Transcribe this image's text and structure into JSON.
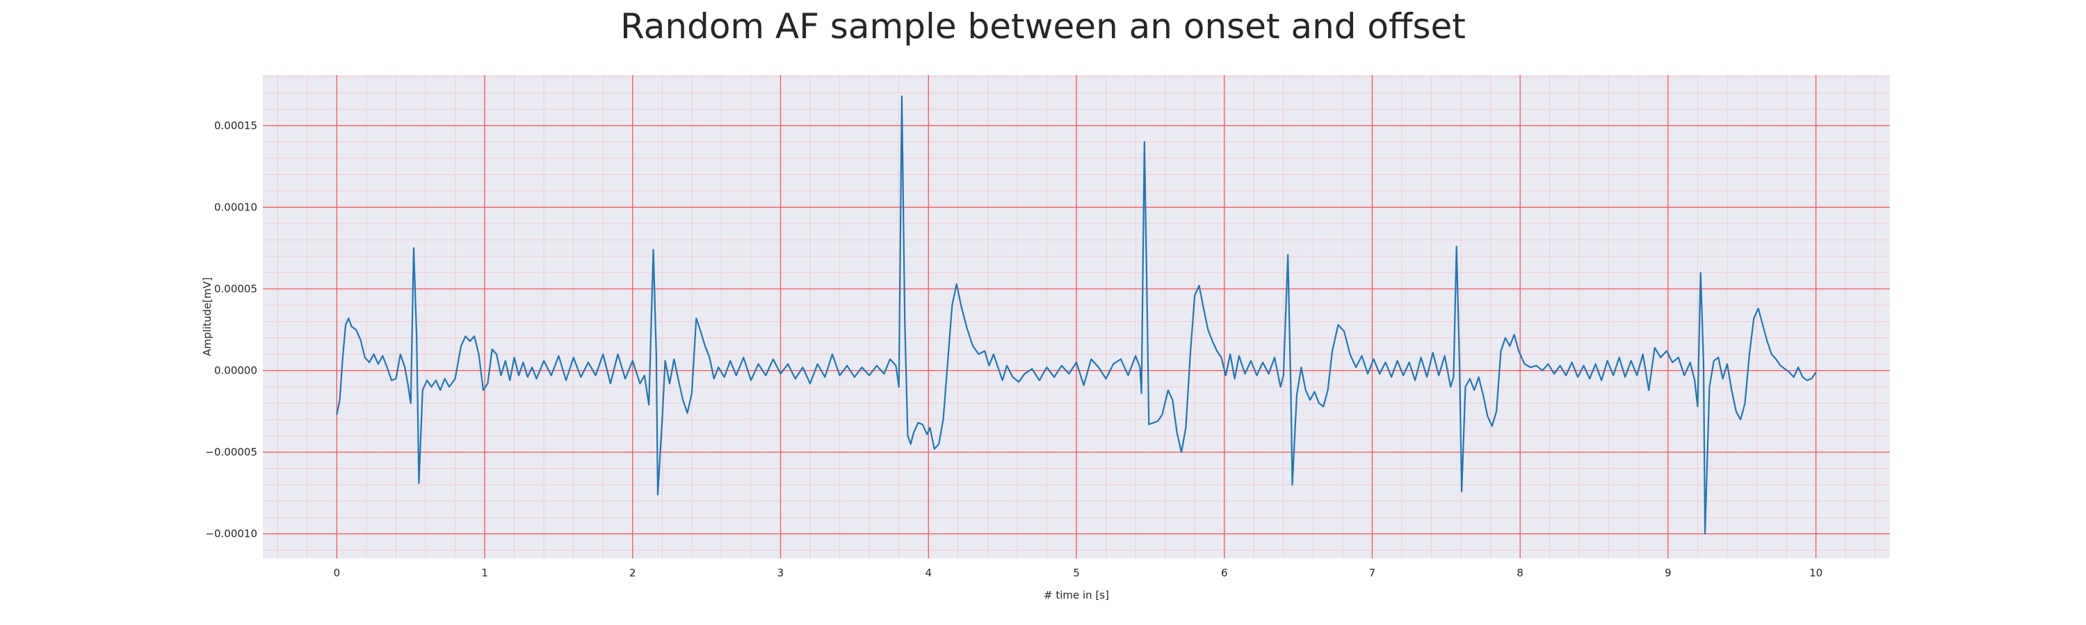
{
  "chart_data": {
    "type": "line",
    "title": "Random AF sample between an onset and offset",
    "xlabel": "# time in [s]",
    "ylabel": "Amplitude[mV]",
    "xlim": [
      -0.5,
      10.5
    ],
    "ylim": [
      -0.000115,
      0.000181
    ],
    "x_ticks": [
      0,
      1,
      2,
      3,
      4,
      5,
      6,
      7,
      8,
      9,
      10
    ],
    "x_tick_labels": [
      "0",
      "1",
      "2",
      "3",
      "4",
      "5",
      "6",
      "7",
      "8",
      "9",
      "10"
    ],
    "y_ticks": [
      -0.0001,
      -5e-05,
      0,
      5e-05,
      0.0001,
      0.00015
    ],
    "y_tick_labels": [
      "−0.00010",
      "−0.00005",
      "0.00000",
      "0.00005",
      "0.00010",
      "0.00015"
    ],
    "grid": true,
    "minor_grid": true,
    "colors": {
      "line": "#1f77b4",
      "background": "#eaeaf2",
      "major_grid": "#ff0000",
      "minor_grid": "#ff9a9a"
    },
    "series": [
      {
        "points": [
          [
            0.0,
            -2.7e-05
          ],
          [
            0.02,
            -1.8e-05
          ],
          [
            0.04,
            8e-06
          ],
          [
            0.06,
            2.8e-05
          ],
          [
            0.08,
            3.2e-05
          ],
          [
            0.1,
            2.7e-05
          ],
          [
            0.13,
            2.5e-05
          ],
          [
            0.16,
            1.9e-05
          ],
          [
            0.19,
            8e-06
          ],
          [
            0.22,
            5e-06
          ],
          [
            0.25,
            1e-05
          ],
          [
            0.28,
            4e-06
          ],
          [
            0.31,
            9e-06
          ],
          [
            0.34,
            2e-06
          ],
          [
            0.37,
            -6e-06
          ],
          [
            0.4,
            -5e-06
          ],
          [
            0.43,
            1e-05
          ],
          [
            0.46,
            2e-06
          ],
          [
            0.48,
            -8e-06
          ],
          [
            0.5,
            -2e-05
          ],
          [
            0.52,
            7.5e-05
          ],
          [
            0.54,
            2e-05
          ],
          [
            0.555,
            -6.9e-05
          ],
          [
            0.58,
            -1.2e-05
          ],
          [
            0.61,
            -6e-06
          ],
          [
            0.64,
            -1e-05
          ],
          [
            0.67,
            -6e-06
          ],
          [
            0.7,
            -1.2e-05
          ],
          [
            0.73,
            -5e-06
          ],
          [
            0.76,
            -1e-05
          ],
          [
            0.8,
            -5e-06
          ],
          [
            0.84,
            1.5e-05
          ],
          [
            0.87,
            2.1e-05
          ],
          [
            0.9,
            1.8e-05
          ],
          [
            0.93,
            2.1e-05
          ],
          [
            0.96,
            1e-05
          ],
          [
            0.99,
            -1.2e-05
          ],
          [
            1.02,
            -8e-06
          ],
          [
            1.05,
            1.3e-05
          ],
          [
            1.08,
            1e-05
          ],
          [
            1.11,
            -3e-06
          ],
          [
            1.14,
            6e-06
          ],
          [
            1.17,
            -6e-06
          ],
          [
            1.2,
            8e-06
          ],
          [
            1.23,
            -3e-06
          ],
          [
            1.26,
            5e-06
          ],
          [
            1.29,
            -4e-06
          ],
          [
            1.32,
            2e-06
          ],
          [
            1.35,
            -5e-06
          ],
          [
            1.4,
            6e-06
          ],
          [
            1.45,
            -3e-06
          ],
          [
            1.5,
            9e-06
          ],
          [
            1.55,
            -6e-06
          ],
          [
            1.6,
            8e-06
          ],
          [
            1.65,
            -4e-06
          ],
          [
            1.7,
            5e-06
          ],
          [
            1.75,
            -3e-06
          ],
          [
            1.8,
            1e-05
          ],
          [
            1.85,
            -8e-06
          ],
          [
            1.9,
            1e-05
          ],
          [
            1.95,
            -5e-06
          ],
          [
            2.0,
            6e-06
          ],
          [
            2.05,
            -8e-06
          ],
          [
            2.08,
            -3e-06
          ],
          [
            2.11,
            -2.1e-05
          ],
          [
            2.14,
            7.4e-05
          ],
          [
            2.16,
            1e-05
          ],
          [
            2.17,
            -7.6e-05
          ],
          [
            2.2,
            -3e-05
          ],
          [
            2.22,
            6e-06
          ],
          [
            2.25,
            -8e-06
          ],
          [
            2.28,
            7e-06
          ],
          [
            2.31,
            -6e-06
          ],
          [
            2.34,
            -1.8e-05
          ],
          [
            2.37,
            -2.6e-05
          ],
          [
            2.4,
            -1.4e-05
          ],
          [
            2.43,
            3.2e-05
          ],
          [
            2.46,
            2.4e-05
          ],
          [
            2.49,
            1.5e-05
          ],
          [
            2.52,
            8e-06
          ],
          [
            2.55,
            -5e-06
          ],
          [
            2.58,
            2e-06
          ],
          [
            2.62,
            -4e-06
          ],
          [
            2.66,
            6e-06
          ],
          [
            2.7,
            -3e-06
          ],
          [
            2.75,
            8e-06
          ],
          [
            2.8,
            -6e-06
          ],
          [
            2.85,
            4e-06
          ],
          [
            2.9,
            -3e-06
          ],
          [
            2.95,
            7e-06
          ],
          [
            3.0,
            -2e-06
          ],
          [
            3.05,
            4e-06
          ],
          [
            3.1,
            -5e-06
          ],
          [
            3.15,
            2e-06
          ],
          [
            3.2,
            -8e-06
          ],
          [
            3.25,
            4e-06
          ],
          [
            3.3,
            -4e-06
          ],
          [
            3.35,
            1e-05
          ],
          [
            3.4,
            -3e-06
          ],
          [
            3.45,
            3e-06
          ],
          [
            3.5,
            -4e-06
          ],
          [
            3.55,
            2e-06
          ],
          [
            3.6,
            -3e-06
          ],
          [
            3.65,
            3e-06
          ],
          [
            3.7,
            -2e-06
          ],
          [
            3.74,
            7e-06
          ],
          [
            3.78,
            3e-06
          ],
          [
            3.8,
            -1e-05
          ],
          [
            3.82,
            0.000168
          ],
          [
            3.84,
            3e-05
          ],
          [
            3.86,
            -4e-05
          ],
          [
            3.88,
            -4.5e-05
          ],
          [
            3.9,
            -3.8e-05
          ],
          [
            3.93,
            -3.2e-05
          ],
          [
            3.96,
            -3.3e-05
          ],
          [
            3.99,
            -3.9e-05
          ],
          [
            4.01,
            -3.5e-05
          ],
          [
            4.04,
            -4.8e-05
          ],
          [
            4.07,
            -4.5e-05
          ],
          [
            4.1,
            -3e-05
          ],
          [
            4.13,
            5e-06
          ],
          [
            4.16,
            4e-05
          ],
          [
            4.19,
            5.3e-05
          ],
          [
            4.22,
            4e-05
          ],
          [
            4.26,
            2.6e-05
          ],
          [
            4.3,
            1.5e-05
          ],
          [
            4.34,
            1e-05
          ],
          [
            4.38,
            1.2e-05
          ],
          [
            4.41,
            3e-06
          ],
          [
            4.44,
            1e-05
          ],
          [
            4.47,
            2e-06
          ],
          [
            4.5,
            -6e-06
          ],
          [
            4.53,
            3e-06
          ],
          [
            4.57,
            -4e-06
          ],
          [
            4.61,
            -7e-06
          ],
          [
            4.65,
            -2e-06
          ],
          [
            4.7,
            1e-06
          ],
          [
            4.75,
            -6e-06
          ],
          [
            4.8,
            2e-06
          ],
          [
            4.85,
            -4e-06
          ],
          [
            4.9,
            3e-06
          ],
          [
            4.95,
            -2e-06
          ],
          [
            5.0,
            5e-06
          ],
          [
            5.05,
            -9e-06
          ],
          [
            5.1,
            7e-06
          ],
          [
            5.15,
            2e-06
          ],
          [
            5.2,
            -5e-06
          ],
          [
            5.25,
            4e-06
          ],
          [
            5.3,
            7e-06
          ],
          [
            5.35,
            -3e-06
          ],
          [
            5.4,
            9e-06
          ],
          [
            5.43,
            2e-06
          ],
          [
            5.44,
            -1.4e-05
          ],
          [
            5.46,
            0.00014
          ],
          [
            5.48,
            3e-05
          ],
          [
            5.49,
            -3.3e-05
          ],
          [
            5.52,
            -3.2e-05
          ],
          [
            5.55,
            -3.1e-05
          ],
          [
            5.58,
            -2.7e-05
          ],
          [
            5.62,
            -1.2e-05
          ],
          [
            5.65,
            -1.8e-05
          ],
          [
            5.68,
            -3.8e-05
          ],
          [
            5.71,
            -5e-05
          ],
          [
            5.74,
            -3.5e-05
          ],
          [
            5.77,
            1e-05
          ],
          [
            5.8,
            4.6e-05
          ],
          [
            5.83,
            5.2e-05
          ],
          [
            5.86,
            3.8e-05
          ],
          [
            5.89,
            2.5e-05
          ],
          [
            5.92,
            1.8e-05
          ],
          [
            5.95,
            1.2e-05
          ],
          [
            5.98,
            8e-06
          ],
          [
            6.01,
            -3e-06
          ],
          [
            6.04,
            1e-05
          ],
          [
            6.07,
            -5e-06
          ],
          [
            6.1,
            9e-06
          ],
          [
            6.14,
            -2e-06
          ],
          [
            6.18,
            6e-06
          ],
          [
            6.22,
            -3e-06
          ],
          [
            6.26,
            5e-06
          ],
          [
            6.3,
            -2e-06
          ],
          [
            6.34,
            8e-06
          ],
          [
            6.38,
            -1e-05
          ],
          [
            6.4,
            -3e-06
          ],
          [
            6.43,
            7.1e-05
          ],
          [
            6.45,
            -1.2e-05
          ],
          [
            6.46,
            -7e-05
          ],
          [
            6.49,
            -1.5e-05
          ],
          [
            6.52,
            2e-06
          ],
          [
            6.55,
            -1.2e-05
          ],
          [
            6.58,
            -1.8e-05
          ],
          [
            6.61,
            -1.3e-05
          ],
          [
            6.64,
            -2e-05
          ],
          [
            6.67,
            -2.2e-05
          ],
          [
            6.7,
            -1.2e-05
          ],
          [
            6.73,
            1.2e-05
          ],
          [
            6.77,
            2.8e-05
          ],
          [
            6.81,
            2.4e-05
          ],
          [
            6.85,
            1e-05
          ],
          [
            6.89,
            2e-06
          ],
          [
            6.93,
            9e-06
          ],
          [
            6.97,
            -2e-06
          ],
          [
            7.01,
            7e-06
          ],
          [
            7.05,
            -2e-06
          ],
          [
            7.09,
            5e-06
          ],
          [
            7.13,
            -4e-06
          ],
          [
            7.17,
            6e-06
          ],
          [
            7.21,
            -3e-06
          ],
          [
            7.25,
            5e-06
          ],
          [
            7.29,
            -6e-06
          ],
          [
            7.33,
            8e-06
          ],
          [
            7.37,
            -4e-06
          ],
          [
            7.41,
            1.1e-05
          ],
          [
            7.45,
            -3e-06
          ],
          [
            7.49,
            9e-06
          ],
          [
            7.53,
            -1e-05
          ],
          [
            7.55,
            -4e-06
          ],
          [
            7.57,
            7.6e-05
          ],
          [
            7.59,
            5e-06
          ],
          [
            7.605,
            -7.4e-05
          ],
          [
            7.63,
            -1e-05
          ],
          [
            7.66,
            -5e-06
          ],
          [
            7.69,
            -1.2e-05
          ],
          [
            7.72,
            -4e-06
          ],
          [
            7.75,
            -1.5e-05
          ],
          [
            7.78,
            -2.8e-05
          ],
          [
            7.81,
            -3.4e-05
          ],
          [
            7.84,
            -2.5e-05
          ],
          [
            7.87,
            1.2e-05
          ],
          [
            7.9,
            2e-05
          ],
          [
            7.93,
            1.5e-05
          ],
          [
            7.96,
            2.2e-05
          ],
          [
            7.99,
            1.2e-05
          ],
          [
            8.03,
            4e-06
          ],
          [
            8.07,
            2e-06
          ],
          [
            8.11,
            3e-06
          ],
          [
            8.15,
            0.0
          ],
          [
            8.19,
            4e-06
          ],
          [
            8.23,
            -2e-06
          ],
          [
            8.27,
            3e-06
          ],
          [
            8.31,
            -3e-06
          ],
          [
            8.35,
            5e-06
          ],
          [
            8.39,
            -4e-06
          ],
          [
            8.43,
            3e-06
          ],
          [
            8.47,
            -5e-06
          ],
          [
            8.51,
            4e-06
          ],
          [
            8.55,
            -6e-06
          ],
          [
            8.59,
            6e-06
          ],
          [
            8.63,
            -3e-06
          ],
          [
            8.67,
            8e-06
          ],
          [
            8.71,
            -4e-06
          ],
          [
            8.75,
            6e-06
          ],
          [
            8.79,
            -3e-06
          ],
          [
            8.83,
            1e-05
          ],
          [
            8.87,
            -1.2e-05
          ],
          [
            8.91,
            1.4e-05
          ],
          [
            8.95,
            8e-06
          ],
          [
            8.99,
            1.2e-05
          ],
          [
            9.03,
            5e-06
          ],
          [
            9.07,
            8e-06
          ],
          [
            9.11,
            -3e-06
          ],
          [
            9.15,
            5e-06
          ],
          [
            9.18,
            -6e-06
          ],
          [
            9.2,
            -2.2e-05
          ],
          [
            9.22,
            6e-05
          ],
          [
            9.24,
            5e-06
          ],
          [
            9.25,
            -0.0001
          ],
          [
            9.28,
            -1e-05
          ],
          [
            9.31,
            6e-06
          ],
          [
            9.34,
            8e-06
          ],
          [
            9.37,
            -5e-06
          ],
          [
            9.4,
            4e-06
          ],
          [
            9.43,
            -1.2e-05
          ],
          [
            9.46,
            -2.5e-05
          ],
          [
            9.49,
            -3e-05
          ],
          [
            9.52,
            -2e-05
          ],
          [
            9.55,
            1e-05
          ],
          [
            9.58,
            3.2e-05
          ],
          [
            9.61,
            3.8e-05
          ],
          [
            9.64,
            2.8e-05
          ],
          [
            9.67,
            1.8e-05
          ],
          [
            9.7,
            1e-05
          ],
          [
            9.73,
            7e-06
          ],
          [
            9.76,
            3e-06
          ],
          [
            9.79,
            1e-06
          ],
          [
            9.82,
            -1e-06
          ],
          [
            9.85,
            -4e-06
          ],
          [
            9.88,
            2e-06
          ],
          [
            9.91,
            -4e-06
          ],
          [
            9.94,
            -6e-06
          ],
          [
            9.97,
            -5e-06
          ],
          [
            10.0,
            -1e-06
          ]
        ]
      }
    ]
  }
}
